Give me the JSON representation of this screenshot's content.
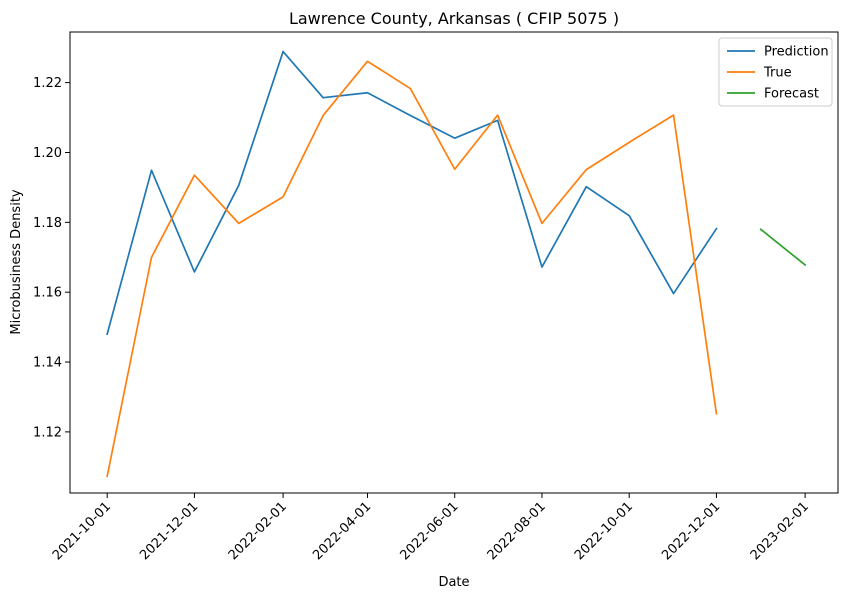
{
  "chart_data": {
    "type": "line",
    "title": "Lawrence County, Arkansas ( CFIP 5075 )",
    "xlabel": "Date",
    "ylabel": "Microbusiness Density",
    "x_tick_labels": [
      "2021-10-01",
      "2021-12-01",
      "2022-02-01",
      "2022-04-01",
      "2022-06-01",
      "2022-08-01",
      "2022-10-01",
      "2022-12-01",
      "2023-02-01"
    ],
    "y_tick_labels": [
      "1.12",
      "1.14",
      "1.16",
      "1.18",
      "1.20",
      "1.22"
    ],
    "ylim": [
      1.1025,
      1.2345
    ],
    "xlim": [
      "2021-09-05",
      "2023-02-24"
    ],
    "grid": false,
    "legend_position": "upper right",
    "series": [
      {
        "name": "Prediction",
        "color": "#1f77b4",
        "x": [
          "2021-10-01",
          "2021-11-01",
          "2021-12-01",
          "2022-01-01",
          "2022-02-01",
          "2022-03-01",
          "2022-04-01",
          "2022-05-01",
          "2022-06-01",
          "2022-07-01",
          "2022-08-01",
          "2022-09-01",
          "2022-10-01",
          "2022-11-01",
          "2022-12-01"
        ],
        "values": [
          1.148,
          1.1949,
          1.1658,
          1.1906,
          1.2289,
          1.2157,
          1.2171,
          1.2106,
          1.2041,
          1.2092,
          1.1672,
          1.1902,
          1.1819,
          1.1596,
          1.1782
        ]
      },
      {
        "name": "True",
        "color": "#ff7f0e",
        "x": [
          "2021-10-01",
          "2021-11-01",
          "2021-12-01",
          "2022-01-01",
          "2022-02-01",
          "2022-03-01",
          "2022-04-01",
          "2022-05-01",
          "2022-06-01",
          "2022-07-01",
          "2022-08-01",
          "2022-09-01",
          "2022-10-01",
          "2022-11-01",
          "2022-12-01"
        ],
        "values": [
          1.1073,
          1.17,
          1.1935,
          1.1797,
          1.1873,
          1.2106,
          1.2261,
          1.2183,
          1.1952,
          1.2107,
          1.1797,
          1.1951,
          1.2029,
          1.2107,
          1.1252
        ]
      },
      {
        "name": "Forecast",
        "color": "#2ca02c",
        "x": [
          "2023-01-01",
          "2023-02-01"
        ],
        "values": [
          1.178,
          1.1678
        ]
      }
    ]
  }
}
